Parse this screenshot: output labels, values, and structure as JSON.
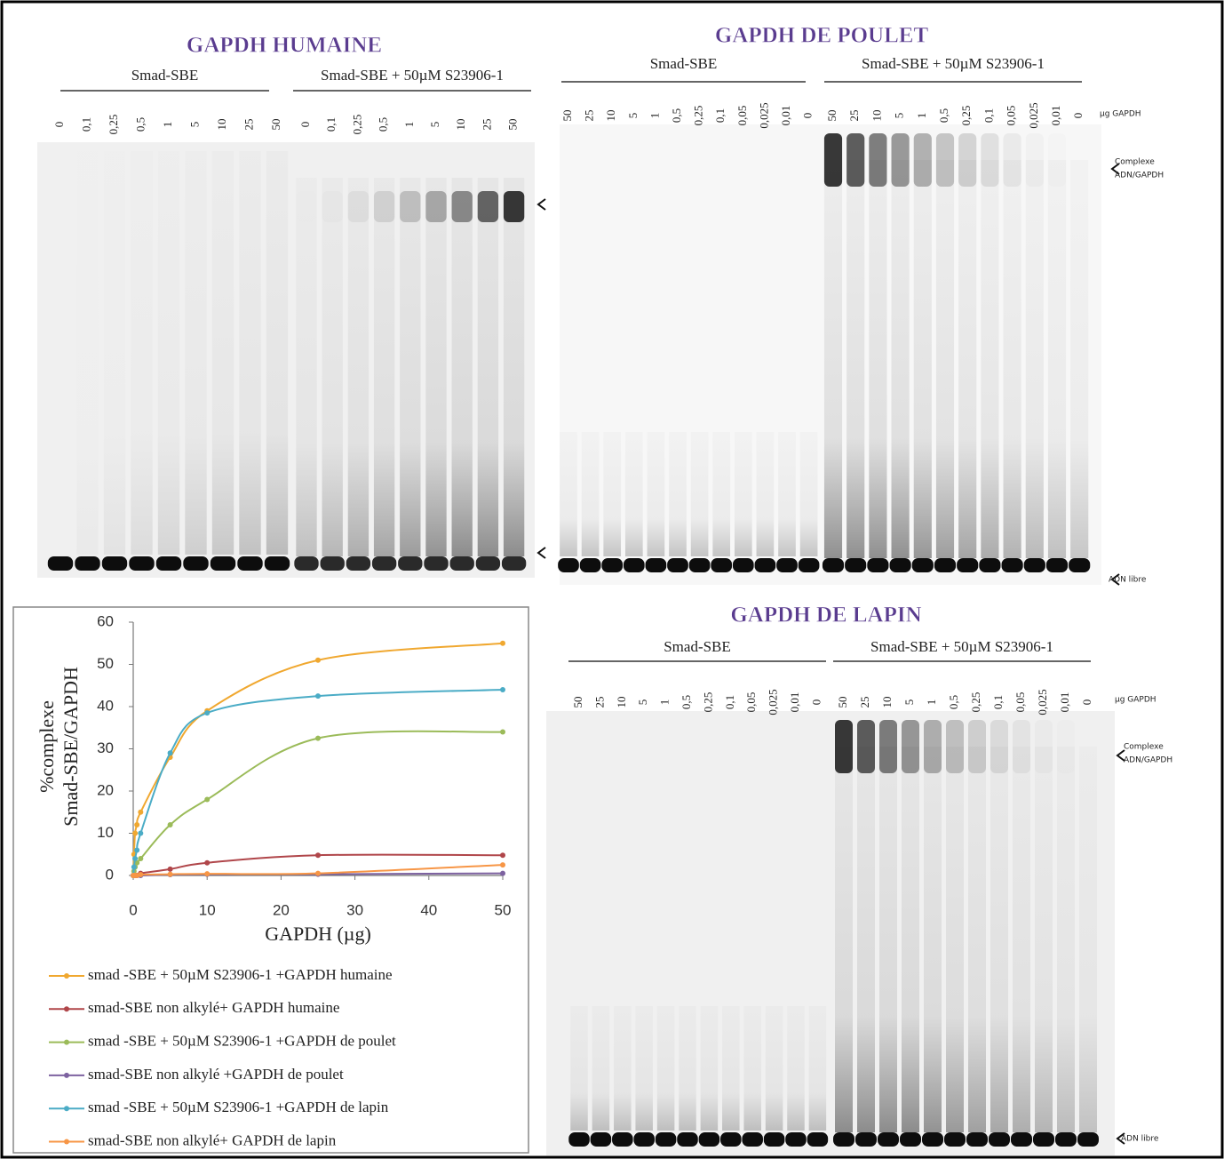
{
  "gels": [
    {
      "title": "GAPDH HUMAINE",
      "groups": [
        "Smad-SBE",
        "Smad-SBE + 50µM S23906-1"
      ],
      "lanes": [
        [
          "0",
          "0,1",
          "0,25",
          "0,5",
          "1",
          "5",
          "10",
          "25",
          "50"
        ],
        [
          "0",
          "0,1",
          "0,25",
          "0,5",
          "1",
          "5",
          "10",
          "25",
          "50"
        ]
      ]
    },
    {
      "title": "GAPDH DE POULET",
      "groups": [
        "Smad-SBE",
        "Smad-SBE + 50µM S23906-1"
      ],
      "lanes": [
        [
          "50",
          "25",
          "10",
          "5",
          "1",
          "0,5",
          "0,25",
          "0,1",
          "0,05",
          "0,025",
          "0,01",
          "0"
        ],
        [
          "50",
          "25",
          "10",
          "5",
          "1",
          "0,5",
          "0,25",
          "0,1",
          "0,05",
          "0,025",
          "0,01",
          "0"
        ]
      ],
      "unit_label": "µg GAPDH",
      "complex_label": [
        "Complexe",
        "ADN/GAPDH"
      ],
      "free_label": "ADN libre"
    },
    {
      "title": "GAPDH DE LAPIN",
      "groups": [
        "Smad-SBE",
        "Smad-SBE + 50µM S23906-1"
      ],
      "lanes": [
        [
          "50",
          "25",
          "10",
          "5",
          "1",
          "0,5",
          "0,25",
          "0,1",
          "0,05",
          "0,025",
          "0,01",
          "0"
        ],
        [
          "50",
          "25",
          "10",
          "5",
          "1",
          "0,5",
          "0,25",
          "0,1",
          "0,05",
          "0,025",
          "0,01",
          "0"
        ]
      ],
      "unit_label": "µg GAPDH",
      "complex_label": [
        "Complexe",
        "ADN/GAPDH"
      ],
      "free_label": "ADN libre"
    }
  ],
  "chart_data": {
    "type": "line",
    "x_label": "GAPDH (µg)",
    "y_label": [
      "%complexe",
      "Smad-SBE/GAPDH"
    ],
    "x": [
      0,
      0.1,
      0.25,
      0.5,
      1,
      5,
      10,
      25,
      50
    ],
    "xlim": [
      0,
      50
    ],
    "xticks": [
      0,
      10,
      20,
      30,
      40,
      50
    ],
    "ylim": [
      0,
      60
    ],
    "yticks": [
      0,
      10,
      20,
      30,
      40,
      50,
      60
    ],
    "series": [
      {
        "name": "smad -SBE + 50µM S23906-1 +GAPDH humaine",
        "color": "#f0a830",
        "values": [
          0,
          5,
          10,
          12,
          15,
          28,
          39,
          51,
          55
        ]
      },
      {
        "name": "smad-SBE non alkylé+ GAPDH humaine",
        "color": "#b0464a",
        "values": [
          0,
          0,
          0,
          0,
          0.5,
          1.5,
          3,
          4.8,
          4.8
        ]
      },
      {
        "name": "smad -SBE + 50µM S23906-1 +GAPDH de poulet",
        "color": "#9bbb59",
        "values": [
          0,
          1,
          2,
          3,
          4,
          12,
          18,
          32.5,
          34
        ]
      },
      {
        "name": "smad-SBE non alkylé +GAPDH de poulet",
        "color": "#7d62a0",
        "values": [
          0,
          0,
          0,
          0,
          0,
          0.2,
          0.3,
          0.3,
          0.5
        ]
      },
      {
        "name": "smad -SBE + 50µM S23906-1 +GAPDH de lapin",
        "color": "#4bacc6",
        "values": [
          0,
          2,
          4,
          6,
          10,
          29,
          38.5,
          42.5,
          44
        ]
      },
      {
        "name": "smad-SBE non alkylé+ GAPDH de lapin",
        "color": "#f79646",
        "values": [
          0,
          0,
          0,
          0,
          0.2,
          0.3,
          0.4,
          0.5,
          2.5
        ]
      }
    ]
  }
}
